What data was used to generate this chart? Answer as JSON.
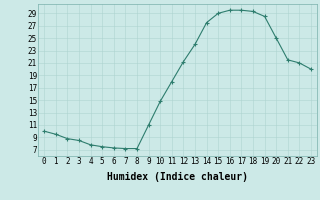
{
  "x": [
    0,
    1,
    2,
    3,
    4,
    5,
    6,
    7,
    8,
    9,
    10,
    11,
    12,
    13,
    14,
    15,
    16,
    17,
    18,
    19,
    20,
    21,
    22,
    23
  ],
  "y": [
    10,
    9.5,
    8.8,
    8.5,
    7.8,
    7.5,
    7.3,
    7.2,
    7.2,
    11,
    14.8,
    18,
    21.2,
    24,
    27.5,
    29,
    29.5,
    29.5,
    29.3,
    28.5,
    25,
    21.5,
    21,
    20
  ],
  "xlabel": "Humidex (Indice chaleur)",
  "xlim": [
    -0.5,
    23.5
  ],
  "ylim": [
    6,
    30.5
  ],
  "yticks": [
    7,
    9,
    11,
    13,
    15,
    17,
    19,
    21,
    23,
    25,
    27,
    29
  ],
  "xticks": [
    0,
    1,
    2,
    3,
    4,
    5,
    6,
    7,
    8,
    9,
    10,
    11,
    12,
    13,
    14,
    15,
    16,
    17,
    18,
    19,
    20,
    21,
    22,
    23
  ],
  "line_color": "#2e7d6e",
  "bg_color": "#cce9e7",
  "grid_color": "#aed4d1",
  "label_fontsize": 7,
  "tick_fontsize": 5.5
}
